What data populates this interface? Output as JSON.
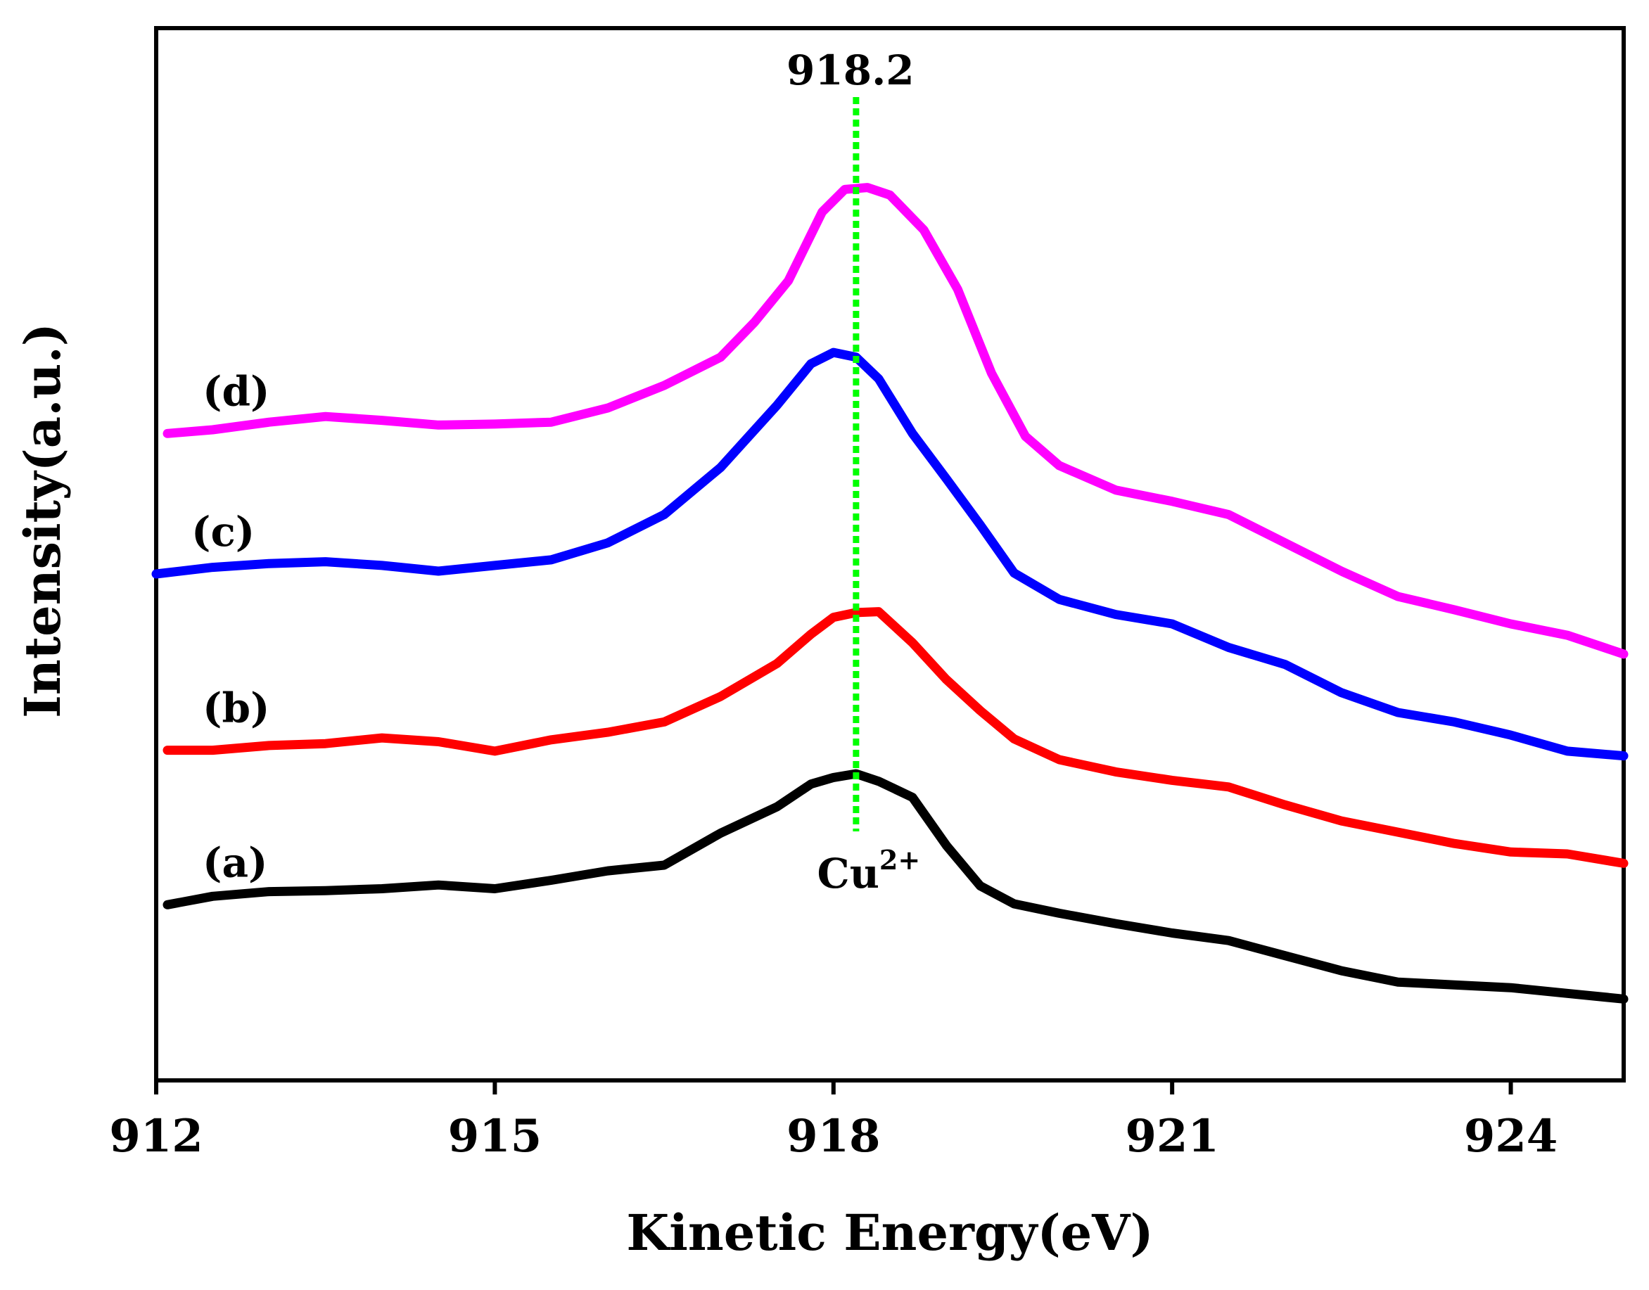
{
  "chart_data": {
    "type": "line",
    "title": "",
    "xlabel": "Kinetic Energy(eV)",
    "ylabel": "Intensity(a.u.)",
    "xlim": [
      912,
      925
    ],
    "ylim": [
      0,
      100
    ],
    "xticks": [
      912,
      915,
      918,
      921,
      924
    ],
    "xtick_labels": [
      "912",
      "915",
      "918",
      "921",
      "924"
    ],
    "yticks_shown": false,
    "grid": false,
    "reference_line": {
      "x": 918.2,
      "label": "918.2",
      "color": "#00ff00",
      "style": "dotted"
    },
    "annotation": {
      "x": 918.2,
      "text": "Cu",
      "superscript": "2+"
    },
    "series": [
      {
        "name": "(a)",
        "color": "#000000",
        "x": [
          912.1,
          912.5,
          913.0,
          913.5,
          914.0,
          914.5,
          915.0,
          915.5,
          916.0,
          916.5,
          917.0,
          917.5,
          917.8,
          918.0,
          918.2,
          918.4,
          918.7,
          919.0,
          919.3,
          919.6,
          920.0,
          920.5,
          921.0,
          921.5,
          922.0,
          922.5,
          923.0,
          923.5,
          924.0,
          924.5,
          925.0
        ],
        "y": [
          15.2,
          16.1,
          16.6,
          16.7,
          16.9,
          17.3,
          16.9,
          17.8,
          18.8,
          19.4,
          22.8,
          25.6,
          28.0,
          28.7,
          29.1,
          28.3,
          26.6,
          21.5,
          17.2,
          15.3,
          14.3,
          13.2,
          12.2,
          11.4,
          9.8,
          8.2,
          7.0,
          6.7,
          6.4,
          5.8,
          5.2
        ]
      },
      {
        "name": "(b)",
        "color": "#ff0000",
        "x": [
          912.1,
          912.5,
          913.0,
          913.5,
          914.0,
          914.5,
          915.0,
          915.5,
          916.0,
          916.5,
          917.0,
          917.5,
          917.8,
          918.0,
          918.2,
          918.4,
          918.7,
          919.0,
          919.3,
          919.6,
          920.0,
          920.5,
          921.0,
          921.5,
          922.0,
          922.5,
          923.0,
          923.5,
          924.0,
          924.5,
          925.0
        ],
        "y": [
          31.6,
          31.6,
          32.1,
          32.3,
          32.9,
          32.5,
          31.5,
          32.7,
          33.5,
          34.6,
          37.3,
          40.8,
          43.9,
          45.7,
          46.2,
          46.3,
          43.0,
          39.1,
          35.8,
          32.8,
          30.6,
          29.3,
          28.4,
          27.7,
          25.8,
          24.1,
          22.9,
          21.7,
          20.8,
          20.6,
          19.6
        ]
      },
      {
        "name": "(c)",
        "color": "#0000ff",
        "x": [
          912.0,
          912.5,
          913.0,
          913.5,
          914.0,
          914.5,
          915.0,
          915.5,
          916.0,
          916.5,
          917.0,
          917.5,
          917.8,
          918.0,
          918.2,
          918.4,
          918.7,
          919.0,
          919.3,
          919.6,
          920.0,
          920.5,
          921.0,
          921.5,
          922.0,
          922.5,
          923.0,
          923.5,
          924.0,
          924.5,
          925.0
        ],
        "y": [
          50.3,
          51.0,
          51.4,
          51.6,
          51.2,
          50.6,
          51.2,
          51.8,
          53.6,
          56.6,
          61.6,
          68.2,
          72.6,
          73.8,
          73.3,
          71.0,
          65.2,
          60.4,
          55.5,
          50.4,
          47.6,
          46.0,
          45.0,
          42.5,
          40.7,
          37.7,
          35.6,
          34.6,
          33.2,
          31.5,
          31.0
        ]
      },
      {
        "name": "(d)",
        "color": "#ff00ff",
        "x": [
          912.1,
          912.5,
          913.0,
          913.5,
          914.0,
          914.5,
          915.0,
          915.5,
          916.0,
          916.5,
          917.0,
          917.3,
          917.6,
          917.9,
          918.1,
          918.3,
          918.5,
          918.8,
          919.1,
          919.4,
          919.7,
          920.0,
          920.5,
          921.0,
          921.5,
          922.0,
          922.5,
          923.0,
          923.5,
          924.0,
          924.5,
          925.0
        ],
        "y": [
          65.2,
          65.6,
          66.4,
          67.0,
          66.6,
          66.1,
          66.2,
          66.4,
          67.9,
          70.3,
          73.3,
          77.0,
          81.4,
          88.7,
          91.1,
          91.3,
          90.5,
          86.8,
          80.5,
          71.6,
          64.9,
          61.8,
          59.2,
          58.0,
          56.6,
          53.6,
          50.6,
          47.9,
          46.5,
          45.0,
          43.8,
          41.8
        ]
      }
    ]
  }
}
